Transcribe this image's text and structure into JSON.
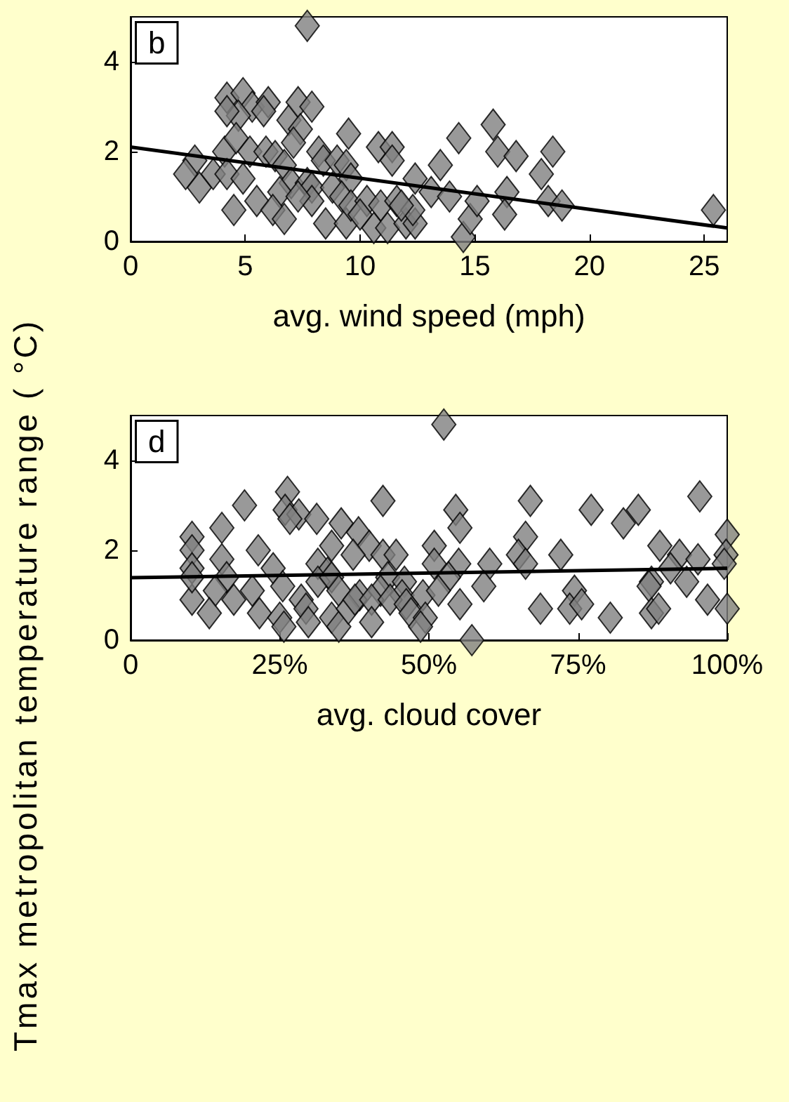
{
  "chart_data": [
    {
      "type": "scatter",
      "ylabel": "Tmax metropolitan temperature range ( °C)",
      "xlabel": "avg. wind speed (mph)",
      "annotations": [
        "b"
      ],
      "xlim": [
        0,
        26
      ],
      "xticks": [
        0,
        5,
        10,
        15,
        20,
        25
      ],
      "ylim": [
        0,
        5
      ],
      "yticks": [
        0,
        2,
        4
      ],
      "grid": false,
      "marker": "diamond",
      "series": [
        {
          "color": "#808080",
          "x": [
            7.7,
            4.2,
            4.9,
            5.3,
            6.0,
            5.8,
            4.7,
            4.2,
            6.9,
            7.3,
            7.9,
            7.4,
            9.5,
            15.8,
            14.3,
            10.8,
            11.4,
            11.4,
            13.5,
            12.4,
            16.0,
            16.8,
            18.4,
            17.9,
            2.8,
            2.4,
            3.0,
            3.6,
            4.1,
            4.6,
            4.2,
            4.9,
            5.2,
            5.9,
            6.3,
            6.7,
            7.0,
            7.7,
            8.2,
            8.4,
            9.0,
            9.4,
            9.6,
            7.9,
            8.8,
            9.2,
            6.5,
            4.5,
            5.5,
            6.2,
            6.7,
            7.9,
            8.5,
            9.4,
            9.6,
            10.3,
            10.9,
            10.6,
            11.2,
            11.6,
            12.0,
            12.4,
            12.3,
            13.1,
            13.9,
            14.5,
            14.8,
            15.1,
            16.4,
            16.3,
            18.2,
            18.8,
            25.4,
            7.3,
            11.8,
            7.1,
            10.0
          ],
          "values": [
            4.8,
            3.2,
            3.3,
            3.0,
            3.1,
            2.9,
            2.8,
            2.9,
            2.7,
            3.1,
            3.0,
            2.5,
            2.4,
            2.6,
            2.3,
            2.1,
            2.1,
            1.8,
            1.7,
            1.4,
            2.0,
            1.9,
            2.0,
            1.5,
            1.8,
            1.5,
            1.2,
            1.5,
            2.0,
            2.3,
            1.5,
            1.4,
            2.0,
            2.0,
            1.9,
            1.7,
            1.3,
            1.3,
            2.0,
            1.8,
            1.8,
            1.7,
            1.4,
            1.2,
            1.2,
            1.0,
            1.1,
            0.7,
            0.9,
            0.7,
            0.5,
            0.9,
            0.4,
            0.4,
            0.8,
            0.9,
            0.8,
            0.3,
            0.3,
            0.9,
            0.4,
            0.4,
            0.7,
            1.1,
            1.0,
            0.1,
            0.5,
            0.9,
            1.1,
            0.6,
            0.9,
            0.8,
            0.7,
            1.0,
            0.8,
            2.2,
            0.6
          ]
        },
        {
          "type": "line",
          "color": "#000000",
          "marker": "none",
          "x": [
            0,
            26
          ],
          "values": [
            2.1,
            0.3
          ]
        }
      ]
    },
    {
      "type": "scatter",
      "xlabel": "avg. cloud cover",
      "annotations": [
        "d"
      ],
      "xlim": [
        0,
        100
      ],
      "xticks": [
        0,
        {
          "value": 25,
          "label": "25%"
        },
        {
          "value": 50,
          "label": "50%"
        },
        {
          "value": 75,
          "label": "75%"
        },
        {
          "value": 100,
          "label": "100%"
        }
      ],
      "ylim": [
        0,
        5
      ],
      "yticks": [
        0,
        2,
        4
      ],
      "grid": false,
      "marker": "diamond",
      "series": [
        {
          "color": "#808080",
          "x": [
            52.5,
            26.3,
            95.4,
            42.3,
            67.0,
            19.1,
            77.2,
            85.1,
            25.9,
            54.5,
            28.2,
            26.7,
            31.2,
            35.3,
            15.3,
            55.2,
            82.6,
            38.2,
            10.3,
            66.2,
            100,
            40.0,
            10.3,
            88.7,
            21.4,
            33.7,
            50.9,
            42.3,
            44.5,
            37.3,
            15.3,
            72.1,
            65.0,
            92.0,
            95.1,
            99.8,
            10.3,
            23.9,
            31.4,
            33.0,
            50.9,
            55.0,
            60.2,
            66.2,
            90.5,
            99.5,
            16.1,
            31.4,
            33.7,
            43.1,
            45.9,
            53.3,
            87.3,
            93.2,
            14.2,
            17.3,
            20.4,
            25.5,
            34.9,
            38.4,
            41.9,
            45.5,
            49.0,
            51.6,
            59.2,
            74.4,
            86.9,
            10.3,
            21.6,
            25.0,
            25.7,
            28.6,
            29.4,
            29.8,
            33.7,
            34.9,
            36.5,
            37.6,
            40.4,
            40.4,
            43.5,
            46.2,
            47.0,
            49.4,
            48.6,
            55.2,
            57.2,
            13.2,
            68.7,
            73.6,
            75.6,
            80.4,
            87.3,
            88.5,
            96.7,
            100,
            10.3
          ],
          "values": [
            4.8,
            3.3,
            3.2,
            3.1,
            3.1,
            3.0,
            2.9,
            2.9,
            2.9,
            2.9,
            2.8,
            2.7,
            2.7,
            2.6,
            2.5,
            2.5,
            2.6,
            2.4,
            2.3,
            2.3,
            2.35,
            2.1,
            2.0,
            2.1,
            2.0,
            2.1,
            2.1,
            1.9,
            1.9,
            1.9,
            1.8,
            1.9,
            1.9,
            1.9,
            1.8,
            1.9,
            1.6,
            1.6,
            1.7,
            1.5,
            1.7,
            1.7,
            1.7,
            1.7,
            1.6,
            1.7,
            1.4,
            1.3,
            1.4,
            1.4,
            1.3,
            1.4,
            1.3,
            1.3,
            1.1,
            0.9,
            1.1,
            1.2,
            1.1,
            1.0,
            1.1,
            1.0,
            1.0,
            1.1,
            1.2,
            1.1,
            1.2,
            0.9,
            0.6,
            0.5,
            0.3,
            0.9,
            0.7,
            0.4,
            0.5,
            0.3,
            0.7,
            0.9,
            0.9,
            0.4,
            0.9,
            0.8,
            0.6,
            0.5,
            0.3,
            0.8,
            0.0,
            0.6,
            0.7,
            0.7,
            0.8,
            0.5,
            0.6,
            0.7,
            0.9,
            0.7,
            1.4
          ]
        },
        {
          "type": "line",
          "color": "#000000",
          "marker": "none",
          "x": [
            0,
            100
          ],
          "values": [
            1.39,
            1.6
          ]
        }
      ]
    }
  ]
}
